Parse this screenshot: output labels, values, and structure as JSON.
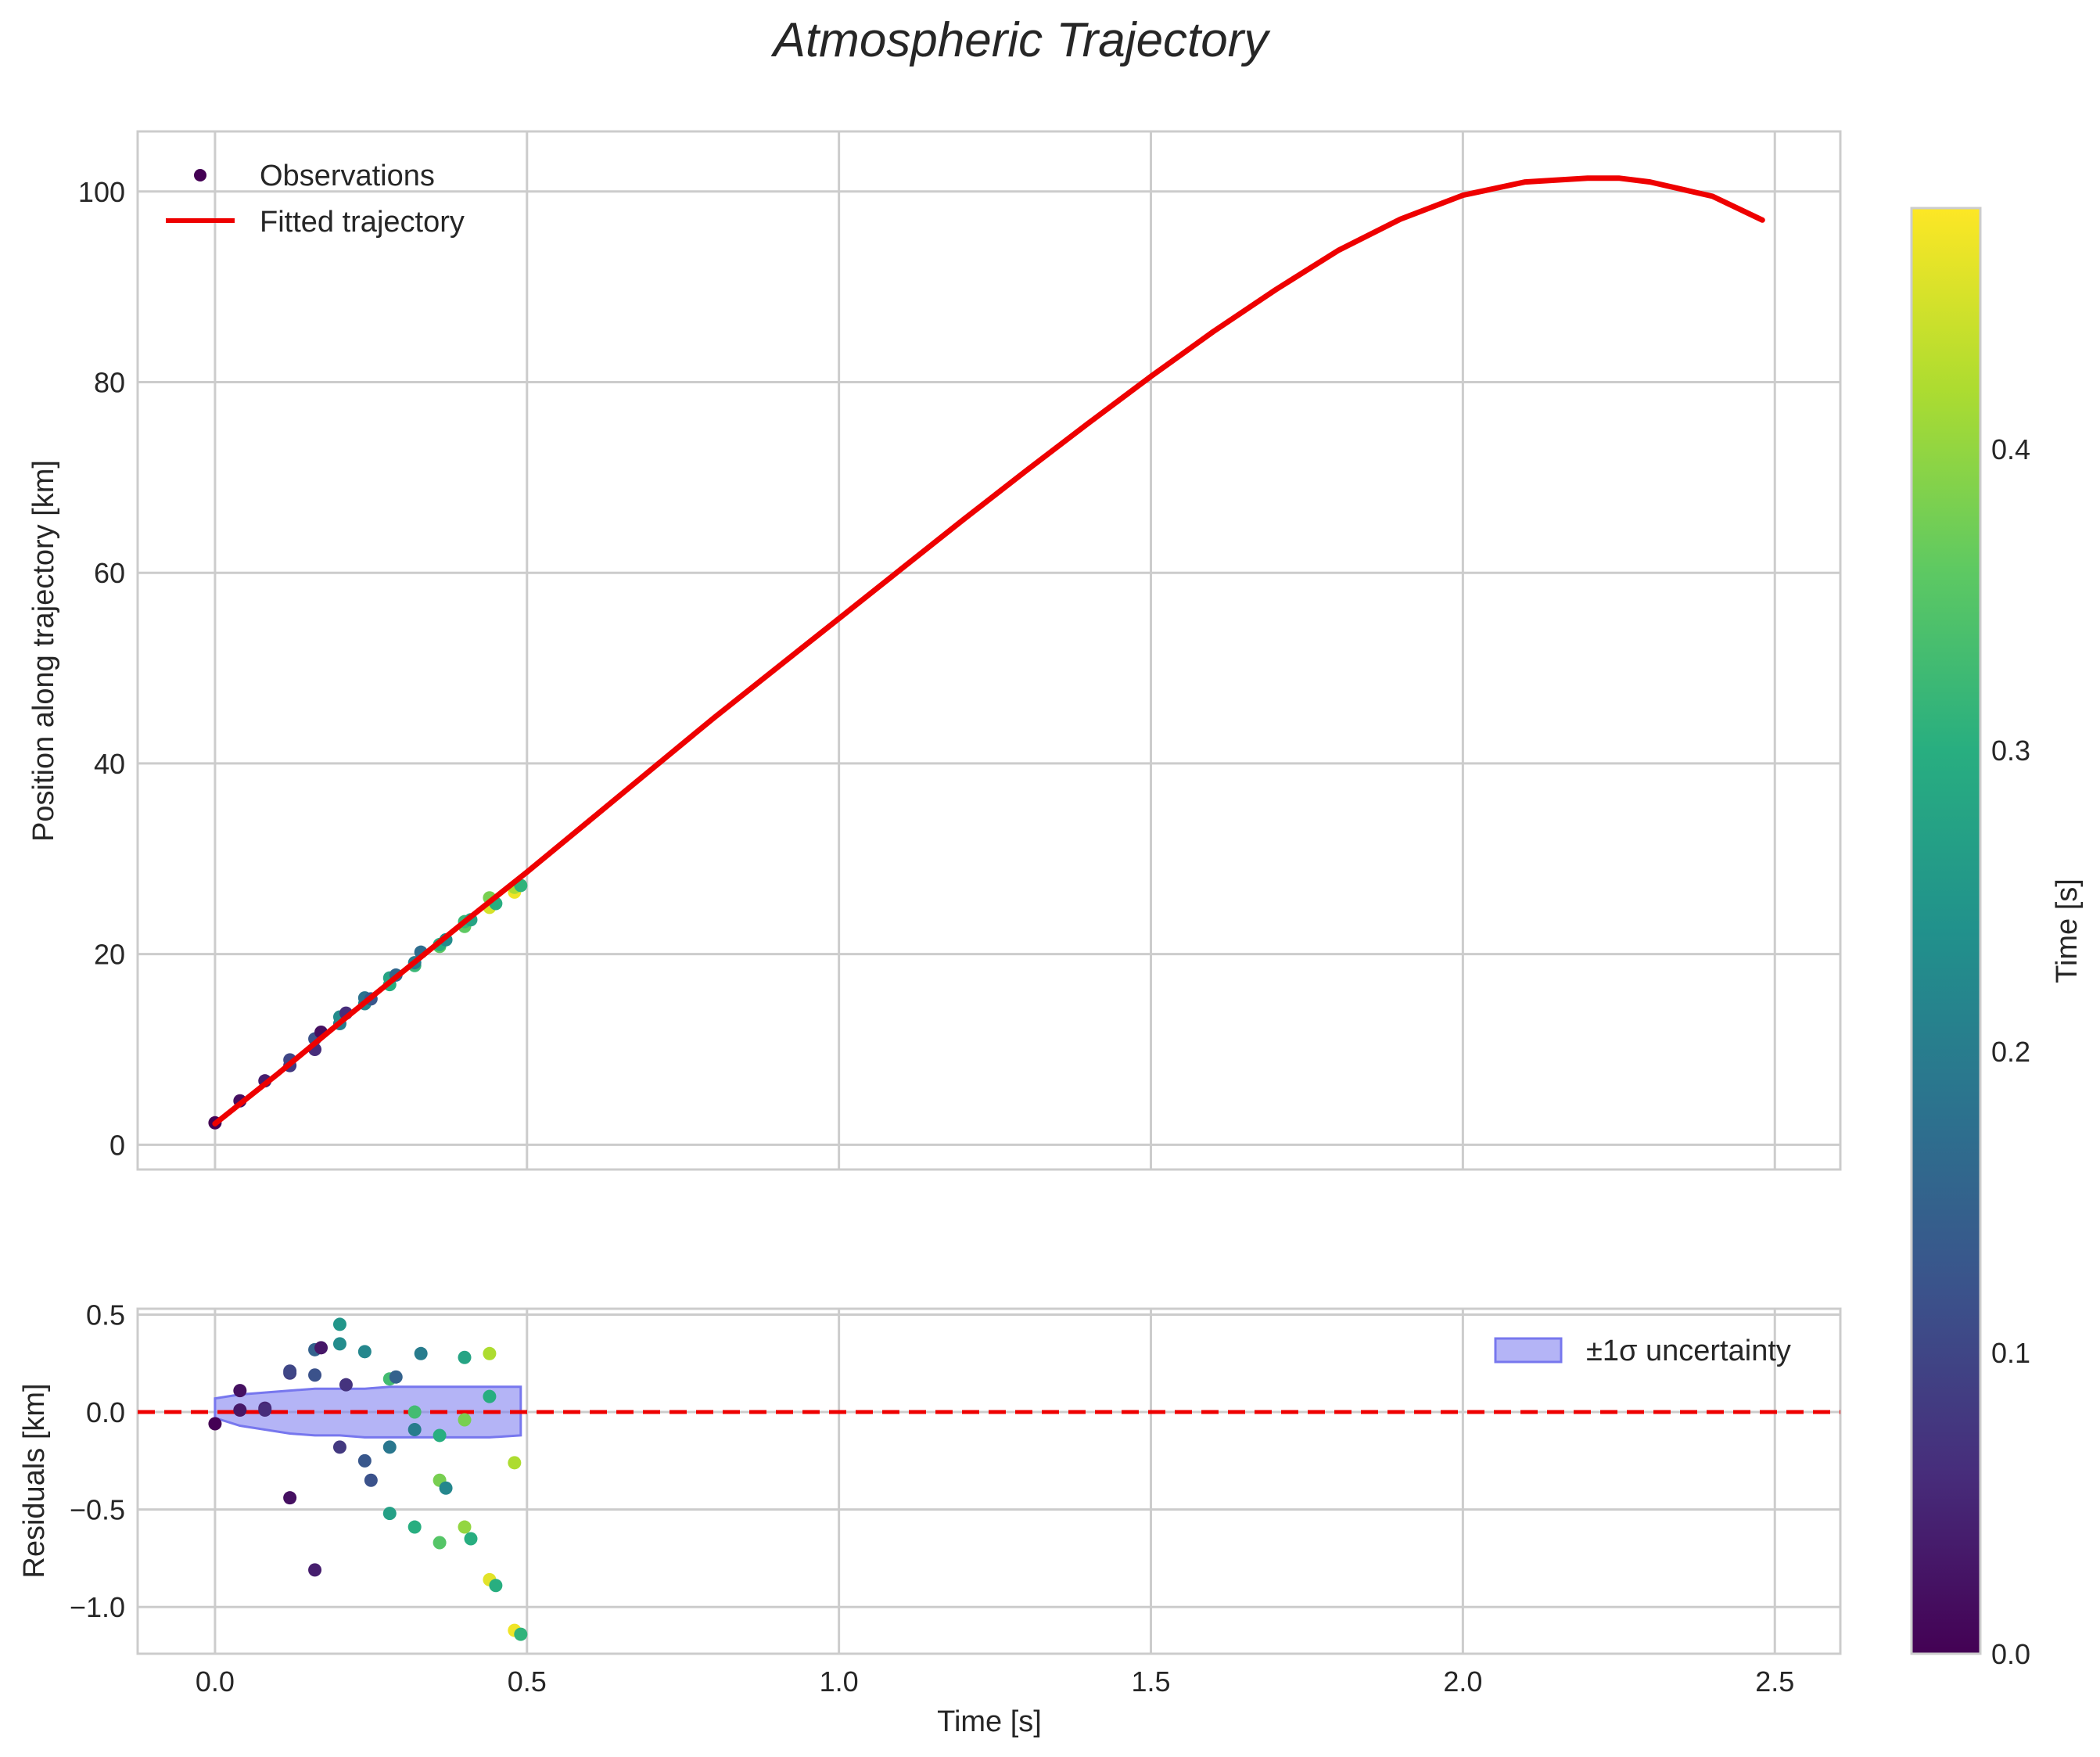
{
  "chart_data": [
    {
      "type": "line+scatter",
      "title": "Atmospheric Trajectory",
      "xlabel": "",
      "ylabel": "Position along trajectory [km]",
      "xlim": [
        -0.124,
        2.605
      ],
      "ylim": [
        -2.6,
        106.3
      ],
      "xticks": [
        0.0,
        0.5,
        1.0,
        1.5,
        2.0,
        2.5
      ],
      "yticks": [
        0,
        20,
        40,
        60,
        80,
        100
      ],
      "ytick_labels": [
        "0",
        "20",
        "40",
        "60",
        "80",
        "100"
      ],
      "grid": true,
      "legend": {
        "position": "top-left",
        "entries": [
          {
            "label": "Observations",
            "kind": "scatter",
            "color": "#440154"
          },
          {
            "label": "Fitted trajectory",
            "kind": "line",
            "color": "#ee0000"
          }
        ]
      },
      "fit": {
        "name": "Fitted trajectory",
        "color": "#ee0000",
        "x": [
          0.0,
          0.1,
          0.2,
          0.3,
          0.4,
          0.5,
          0.6,
          0.7,
          0.8,
          0.9,
          1.0,
          1.1,
          1.2,
          1.3,
          1.4,
          1.5,
          1.6,
          1.7,
          1.8,
          1.9,
          2.0,
          2.1,
          2.2,
          2.25,
          2.3,
          2.4,
          2.48
        ],
        "y": [
          2.2,
          7.4,
          12.8,
          18.1,
          23.4,
          28.6,
          34.0,
          39.4,
          44.8,
          50.0,
          55.2,
          60.4,
          65.6,
          70.7,
          75.7,
          80.6,
          85.3,
          89.7,
          93.8,
          97.1,
          99.6,
          101.0,
          101.4,
          101.4,
          101.0,
          99.5,
          97.0
        ]
      },
      "observations": {
        "name": "Observations",
        "colormap": "viridis",
        "x": [
          0.0,
          0.04,
          0.08,
          0.12,
          0.12,
          0.16,
          0.16,
          0.17,
          0.2,
          0.2,
          0.21,
          0.24,
          0.24,
          0.25,
          0.28,
          0.28,
          0.29,
          0.32,
          0.32,
          0.33,
          0.36,
          0.36,
          0.37,
          0.4,
          0.4,
          0.41,
          0.44,
          0.44,
          0.45,
          0.48,
          0.48,
          0.49
        ],
        "y": [
          2.3,
          4.6,
          6.7,
          8.3,
          8.9,
          10.0,
          11.1,
          11.8,
          12.7,
          13.4,
          13.8,
          14.8,
          15.4,
          15.3,
          16.8,
          17.5,
          17.8,
          18.8,
          19.1,
          20.2,
          20.8,
          21.0,
          21.5,
          22.9,
          23.4,
          23.6,
          24.9,
          25.9,
          25.3,
          26.5,
          27.0,
          27.2
        ],
        "c": [
          0.0,
          0.02,
          0.04,
          0.08,
          0.1,
          0.06,
          0.12,
          0.02,
          0.2,
          0.23,
          0.06,
          0.22,
          0.18,
          0.13,
          0.3,
          0.28,
          0.16,
          0.32,
          0.2,
          0.17,
          0.36,
          0.3,
          0.23,
          0.36,
          0.32,
          0.28,
          0.45,
          0.38,
          0.3,
          0.47,
          0.42,
          0.31
        ]
      },
      "colorbar": {
        "label": "Time [s]",
        "colormap": "viridis",
        "range": [
          0.0,
          0.48
        ],
        "ticks": [
          0.0,
          0.1,
          0.2,
          0.3,
          0.4
        ],
        "tick_labels": [
          "0.0",
          "0.1",
          "0.2",
          "0.3",
          "0.4"
        ]
      }
    },
    {
      "type": "scatter+band",
      "title": "",
      "xlabel": "Time [s]",
      "ylabel": "Residuals [km]",
      "xlim": [
        -0.124,
        2.605
      ],
      "ylim": [
        -1.24,
        0.53
      ],
      "xticks": [
        0.0,
        0.5,
        1.0,
        1.5,
        2.0,
        2.5
      ],
      "xtick_labels": [
        "0.0",
        "0.5",
        "1.0",
        "1.5",
        "2.0",
        "2.5"
      ],
      "yticks": [
        0.5,
        0.0,
        -0.5,
        -1.0
      ],
      "ytick_labels": [
        "0.5",
        "0.0",
        "−0.5",
        "−1.0"
      ],
      "grid": true,
      "zero_line": {
        "y": 0.0,
        "color": "#ee0000",
        "style": "dashed"
      },
      "band": {
        "label": "±1σ uncertainty",
        "color": "#7777ee",
        "x": [
          0.0,
          0.04,
          0.08,
          0.12,
          0.16,
          0.2,
          0.24,
          0.28,
          0.32,
          0.36,
          0.4,
          0.44,
          0.49
        ],
        "upper": [
          0.07,
          0.09,
          0.1,
          0.11,
          0.12,
          0.12,
          0.12,
          0.13,
          0.13,
          0.13,
          0.13,
          0.13,
          0.13
        ],
        "lower": [
          -0.03,
          -0.07,
          -0.09,
          -0.11,
          -0.12,
          -0.12,
          -0.13,
          -0.13,
          -0.13,
          -0.13,
          -0.13,
          -0.13,
          -0.12
        ]
      },
      "legend": {
        "position": "top-right",
        "entries": [
          {
            "label": "±1σ uncertainty",
            "kind": "patch",
            "color": "#7777ee"
          }
        ]
      },
      "residuals": {
        "colormap": "viridis",
        "x": [
          0.0,
          0.04,
          0.04,
          0.08,
          0.08,
          0.12,
          0.12,
          0.12,
          0.16,
          0.16,
          0.16,
          0.17,
          0.2,
          0.2,
          0.2,
          0.21,
          0.24,
          0.24,
          0.25,
          0.28,
          0.28,
          0.28,
          0.29,
          0.32,
          0.32,
          0.32,
          0.33,
          0.36,
          0.36,
          0.36,
          0.37,
          0.4,
          0.4,
          0.4,
          0.41,
          0.44,
          0.44,
          0.44,
          0.45,
          0.48,
          0.48,
          0.49
        ],
        "y": [
          -0.06,
          0.11,
          0.01,
          0.02,
          0.01,
          0.2,
          0.21,
          -0.44,
          0.32,
          0.19,
          -0.81,
          0.33,
          0.45,
          0.35,
          -0.18,
          0.14,
          0.31,
          -0.25,
          -0.35,
          0.17,
          -0.18,
          -0.52,
          0.18,
          0.0,
          -0.09,
          -0.59,
          0.3,
          -0.12,
          -0.35,
          -0.67,
          -0.39,
          0.28,
          -0.04,
          -0.59,
          -0.65,
          0.3,
          0.08,
          -0.86,
          -0.89,
          -0.26,
          -1.12,
          -1.14
        ],
        "c": [
          0.0,
          0.02,
          0.03,
          0.05,
          0.06,
          0.09,
          0.1,
          0.02,
          0.15,
          0.12,
          0.04,
          0.03,
          0.25,
          0.23,
          0.08,
          0.07,
          0.22,
          0.13,
          0.12,
          0.33,
          0.19,
          0.27,
          0.15,
          0.33,
          0.2,
          0.3,
          0.2,
          0.3,
          0.38,
          0.35,
          0.22,
          0.28,
          0.38,
          0.4,
          0.3,
          0.42,
          0.3,
          0.46,
          0.3,
          0.42,
          0.47,
          0.31
        ]
      }
    }
  ]
}
